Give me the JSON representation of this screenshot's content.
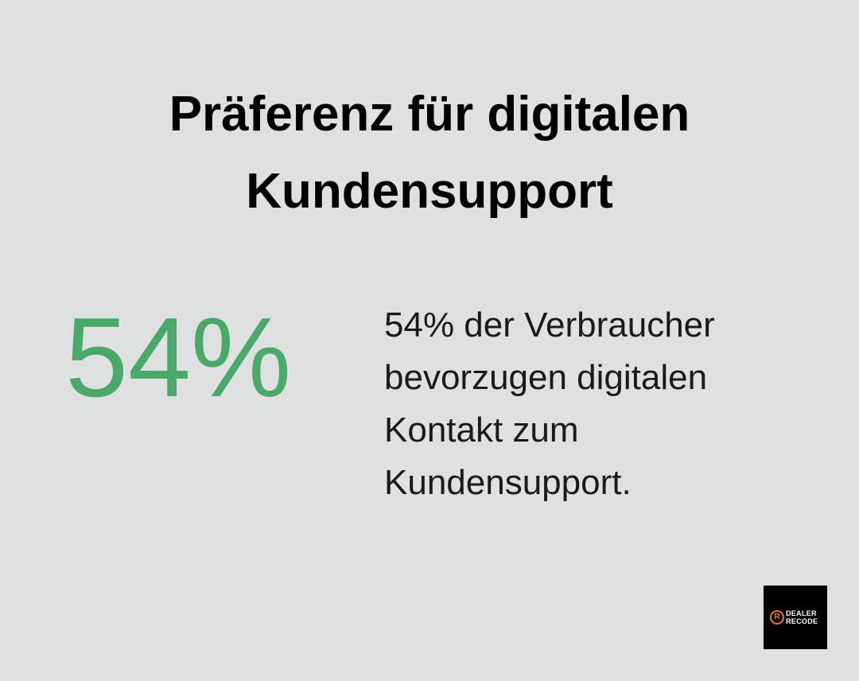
{
  "header": {
    "title_lines": [
      "Präferenz für digitalen",
      "Kundensupport"
    ]
  },
  "stat": {
    "value": "54%",
    "description_lines": [
      "54% der Verbraucher",
      "bevorzugen digitalen",
      "Kontakt zum",
      "Kundensupport."
    ]
  },
  "logo": {
    "icon": "R",
    "lines": [
      "DEALER",
      "RECODE"
    ]
  }
}
